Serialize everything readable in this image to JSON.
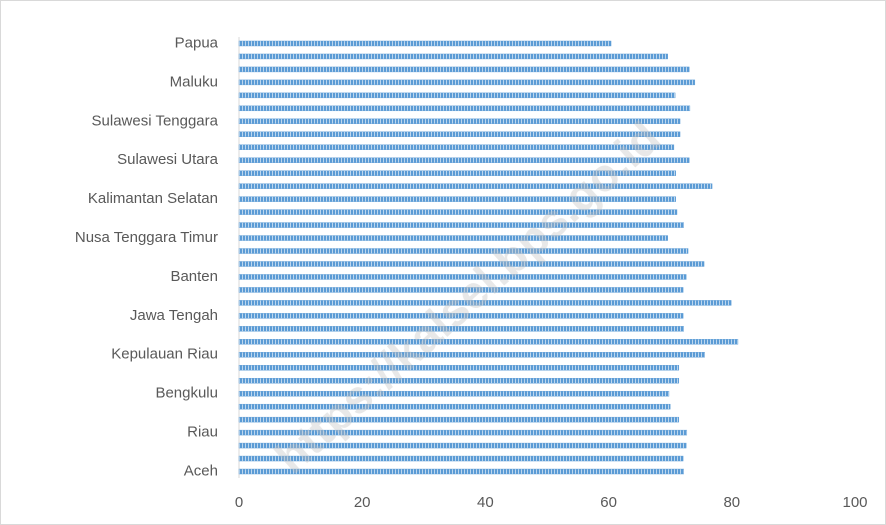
{
  "chart_data": {
    "type": "barh",
    "categories": [
      "Aceh",
      null,
      null,
      "Riau",
      null,
      null,
      "Bengkulu",
      null,
      null,
      "Kepulauan Riau",
      null,
      null,
      "Jawa Tengah",
      null,
      null,
      "Banten",
      null,
      null,
      "Nusa Tenggara Timur",
      null,
      null,
      "Kalimantan Selatan",
      null,
      null,
      "Sulawesi Utara",
      null,
      null,
      "Sulawesi Tenggara",
      null,
      null,
      "Maluku",
      null,
      null,
      "Papua"
    ],
    "values": [
      72.2,
      72.1,
      72.6,
      72.7,
      71.4,
      70.0,
      69.8,
      71.4,
      71.4,
      75.6,
      81.0,
      72.2,
      72.1,
      79.9,
      72.1,
      72.6,
      75.5,
      72.9,
      69.6,
      72.2,
      71.1,
      70.9,
      76.8,
      70.9,
      73.1,
      70.6,
      71.6,
      71.6,
      73.2,
      70.8,
      74.0,
      73.1,
      69.6,
      60.4
    ],
    "color": "#5b9bd5",
    "xlim": [
      0,
      100
    ],
    "xticks": [
      0,
      20,
      40,
      60,
      80,
      100
    ],
    "grid": false,
    "watermark": "https://kalsel.bps.go.id"
  }
}
